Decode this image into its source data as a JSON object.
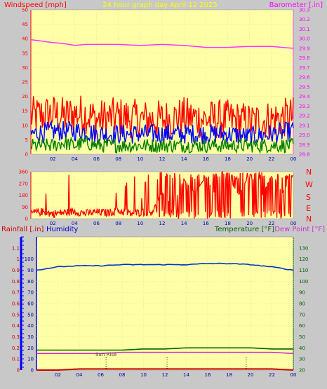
{
  "header": {
    "windspeed_label": "Windspeed [mph]",
    "title": "24 hour graph day   April 12 2025",
    "barometer_label": "Barometer [.in]"
  },
  "bottom_header": {
    "rainfall_label": "Rainfall [.in]",
    "humidity_label": "Humidity",
    "temperature_label": "Temperature [°F]",
    "dewpoint_label": "Dew Point [°F]"
  },
  "direction_letters": [
    "N",
    "W",
    "S",
    "E",
    "N"
  ],
  "sun_rise_label": "Sun Rise",
  "colors": {
    "background": "#c8c8c8",
    "plot_bg": "#ffffa8",
    "gust": "#ff0000",
    "wind_avg": "#0000ff",
    "wind_min": "#008000",
    "barometer": "#ff33ff",
    "temperature": "#006400",
    "dewpoint": "#cc33cc",
    "humidity": "#0033cc",
    "rain": "#cc0000",
    "title": "#ffff00"
  },
  "chart_data": [
    {
      "type": "line",
      "x_ticks": [
        "02",
        "04",
        "06",
        "08",
        "10",
        "12",
        "14",
        "16",
        "18",
        "20",
        "22",
        "00"
      ],
      "x": [
        0,
        2,
        3,
        4,
        5,
        6,
        8,
        10,
        12,
        14,
        16,
        18,
        20,
        22,
        24
      ],
      "left_axis": {
        "ticks": [
          0,
          5,
          10,
          15,
          20,
          25,
          30,
          35,
          40,
          45,
          50
        ],
        "ylim": [
          0,
          50
        ]
      },
      "right_axis": {
        "ticks": [
          28.8,
          28.9,
          29.0,
          29.1,
          29.2,
          29.3,
          29.4,
          29.5,
          29.6,
          29.7,
          29.8,
          29.9,
          30.0,
          30.1,
          30.2,
          30.3
        ],
        "ylim": [
          28.8,
          30.3
        ]
      },
      "series": [
        {
          "axis": "right",
          "values": [
            29.99,
            29.96,
            29.95,
            29.93,
            29.94,
            29.94,
            29.94,
            29.93,
            29.94,
            29.93,
            29.91,
            29.91,
            29.92,
            29.92,
            29.9
          ]
        },
        {
          "axis": "left",
          "values": [
            13,
            14,
            13,
            14,
            14,
            12,
            13,
            12,
            12,
            13,
            12,
            12,
            11,
            12,
            13
          ]
        },
        {
          "axis": "left",
          "values": [
            7,
            8,
            8,
            8,
            8,
            7,
            7,
            7,
            7,
            7,
            7,
            7,
            6,
            7,
            8
          ]
        },
        {
          "axis": "left",
          "values": [
            3,
            3,
            4,
            3,
            4,
            3,
            3,
            3,
            3,
            3,
            3,
            3,
            3,
            3,
            3
          ]
        }
      ]
    },
    {
      "type": "line",
      "x_ticks": [
        "02",
        "04",
        "06",
        "08",
        "10",
        "12",
        "14",
        "16",
        "18",
        "20",
        "22",
        "00"
      ],
      "left_axis": {
        "ticks": [
          0,
          90,
          180,
          270,
          360
        ],
        "ylim": [
          0,
          360
        ]
      },
      "right_axis": {
        "ticks": [
          "N",
          "W",
          "S",
          "E",
          "N"
        ]
      },
      "series": [
        {
          "x": [
            0,
            1,
            2,
            3,
            4,
            5,
            6,
            7,
            8,
            9,
            10,
            11,
            12,
            13,
            14,
            15,
            16,
            17,
            18,
            19,
            20,
            21,
            22,
            23,
            24
          ],
          "values": [
            40,
            55,
            30,
            45,
            60,
            35,
            50,
            40,
            70,
            30,
            45,
            55,
            200,
            90,
            300,
            200,
            320,
            160,
            330,
            180,
            340,
            150,
            330,
            200,
            330
          ]
        }
      ]
    },
    {
      "type": "line",
      "x_ticks": [
        "02",
        "04",
        "06",
        "08",
        "10",
        "12",
        "14",
        "16",
        "18",
        "20",
        "22",
        "00"
      ],
      "x": [
        0,
        2,
        4,
        6,
        8,
        10,
        12,
        14,
        16,
        18,
        20,
        22,
        24
      ],
      "left_axis": {
        "ticks": [
          0,
          0.1,
          0.2,
          0.3,
          0.4,
          0.5,
          0.6,
          0.7,
          0.8,
          0.9,
          1.0,
          1.1
        ],
        "ylim": [
          0,
          1.2
        ]
      },
      "humidity_axis": {
        "ticks": [
          0,
          10,
          20,
          30,
          40,
          50,
          60,
          70,
          80,
          90,
          100
        ],
        "ylim": [
          0,
          100
        ]
      },
      "right_axis": {
        "ticks": [
          20,
          30,
          40,
          50,
          60,
          70,
          80,
          90,
          100,
          110,
          120,
          130
        ],
        "ylim": [
          20,
          140
        ]
      },
      "sun_rise_hour": 6.5,
      "series": [
        {
          "axis": "humidity",
          "values": [
            90,
            93,
            94,
            94,
            95,
            95,
            95,
            95,
            96,
            96,
            95,
            93,
            90
          ]
        },
        {
          "axis": "right",
          "values": [
            38,
            38,
            38,
            38,
            38,
            39,
            39,
            40,
            40,
            40,
            40,
            39,
            39
          ]
        },
        {
          "axis": "right",
          "values": [
            35,
            35,
            35,
            35,
            36,
            36,
            36,
            36,
            36,
            36,
            36,
            36,
            35
          ]
        },
        {
          "axis": "left",
          "values": [
            0,
            0,
            0.01,
            0.01,
            0.01,
            0.01,
            0.01,
            0.01,
            0.01,
            0.01,
            0.01,
            0.01,
            0
          ]
        }
      ]
    }
  ]
}
